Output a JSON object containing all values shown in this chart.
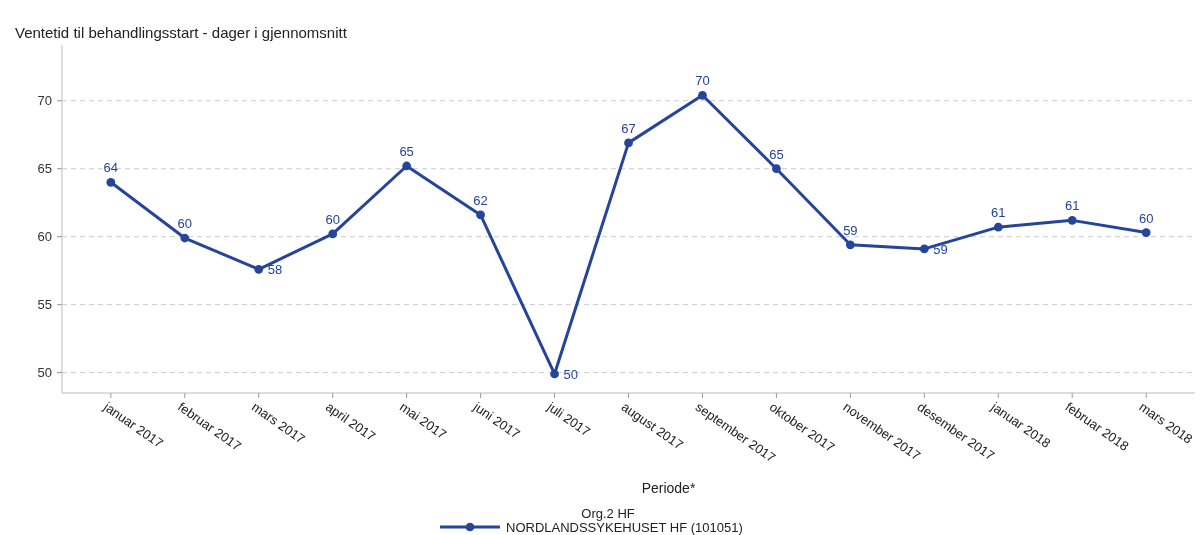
{
  "chart_data": {
    "type": "line",
    "title": "Ventetid til behandlingsstart - dager i gjennomsnitt",
    "xlabel": "Periode*",
    "legend_title": "Org.2 HF",
    "categories": [
      "januar 2017",
      "februar 2017",
      "mars 2017",
      "april 2017",
      "mai 2017",
      "juni 2017",
      "juli 2017",
      "august 2017",
      "september 2017",
      "oktober 2017",
      "november 2017",
      "desember 2017",
      "januar 2018",
      "februar 2018",
      "mars 2018"
    ],
    "series": [
      {
        "name": "NORDLANDSSYKEHUSET HF (101051)",
        "color": "#25449a",
        "values": [
          64.0,
          59.9,
          57.6,
          60.2,
          65.2,
          61.6,
          49.9,
          66.9,
          70.4,
          65.0,
          59.4,
          59.1,
          60.7,
          61.2,
          60.3
        ],
        "value_labels": [
          "64",
          "60",
          "58",
          "60",
          "65",
          "62",
          "50",
          "67",
          "70",
          "65",
          "59",
          "59",
          "61",
          "61",
          "60"
        ]
      }
    ],
    "ylim": [
      48.5,
      74.1
    ],
    "yticks": [
      50,
      55,
      60,
      65,
      70
    ],
    "grid": "y",
    "legend": "bottom",
    "marker": "circle",
    "line_style": "solid"
  }
}
